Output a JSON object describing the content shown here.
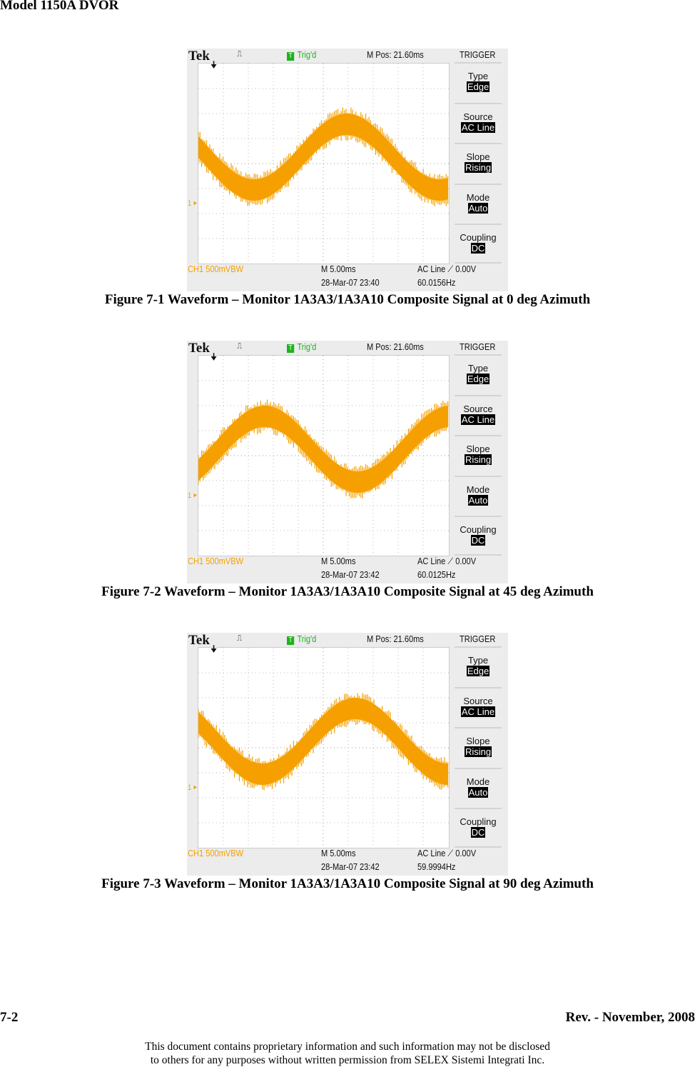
{
  "header": {
    "title": "Model 1150A DVOR"
  },
  "colors": {
    "trace": "#f5a000",
    "trig": "#1bb41b"
  },
  "scopes": [
    {
      "brand": "Tek",
      "status": "Trig'd",
      "mpos": "M Pos: 21.60ms",
      "trigger_title": "TRIGGER",
      "menu": [
        {
          "label": "Type",
          "value": "Edge"
        },
        {
          "label": "Source",
          "value": "AC Line"
        },
        {
          "label": "Slope",
          "value": "Rising"
        },
        {
          "label": "Mode",
          "value": "Auto"
        },
        {
          "label": "Coupling",
          "value": "DC"
        }
      ],
      "ch_marker": "1",
      "ch": "CH1",
      "volts": "500mVBW",
      "timebase": "M 5.00ms",
      "trig_src": "AC Line",
      "trig_level": "0.00V",
      "datetime": "28-Mar-07 23:40",
      "freq": "60.0156Hz",
      "caption": "Figure 7-1  Waveform – Monitor 1A3A3/1A3A10 Composite Signal at 0 deg Azimuth"
    },
    {
      "brand": "Tek",
      "status": "Trig'd",
      "mpos": "M Pos: 21.60ms",
      "trigger_title": "TRIGGER",
      "menu": [
        {
          "label": "Type",
          "value": "Edge"
        },
        {
          "label": "Source",
          "value": "AC Line"
        },
        {
          "label": "Slope",
          "value": "Rising"
        },
        {
          "label": "Mode",
          "value": "Auto"
        },
        {
          "label": "Coupling",
          "value": "DC"
        }
      ],
      "ch_marker": "1",
      "ch": "CH1",
      "volts": "500mVBW",
      "timebase": "M 5.00ms",
      "trig_src": "AC Line",
      "trig_level": "0.00V",
      "datetime": "28-Mar-07 23:42",
      "freq": "60.0125Hz",
      "caption": "Figure 7-2  Waveform – Monitor 1A3A3/1A3A10 Composite Signal at 45 deg Azimuth"
    },
    {
      "brand": "Tek",
      "status": "Trig'd",
      "mpos": "M Pos: 21.60ms",
      "trigger_title": "TRIGGER",
      "menu": [
        {
          "label": "Type",
          "value": "Edge"
        },
        {
          "label": "Source",
          "value": "AC Line"
        },
        {
          "label": "Slope",
          "value": "Rising"
        },
        {
          "label": "Mode",
          "value": "Auto"
        },
        {
          "label": "Coupling",
          "value": "DC"
        }
      ],
      "ch_marker": "1",
      "ch": "CH1",
      "volts": "500mVBW",
      "timebase": "M 5.00ms",
      "trig_src": "AC Line",
      "trig_level": "0.00V",
      "datetime": "28-Mar-07 23:42",
      "freq": "59.9994Hz",
      "caption": "Figure 7-3  Waveform – Monitor 1A3A3/1A3A10 Composite Signal at 90 deg Azimuth"
    }
  ],
  "footer": {
    "page": "7-2",
    "rev": "Rev. -  November, 2008",
    "notice_1": "This document contains proprietary information and such information may not be disclosed",
    "notice_2": "to others for any purposes without written permission from SELEX Sistemi Integrati Inc."
  }
}
